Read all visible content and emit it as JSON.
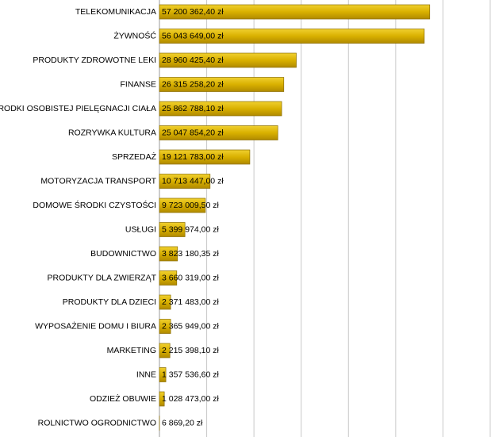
{
  "chart_data": {
    "type": "bar",
    "orientation": "horizontal",
    "color": "#d9b000",
    "grid": true,
    "categories": [
      "TELEKOMUNIKACJA",
      "ŻYWNOŚĆ",
      "PRODUKTY ZDROWOTNE LEKI",
      "FINANSE",
      "ŚRODKI OSOBISTEJ PIELĘGNACJI CIAŁA",
      "ROZRYWKA KULTURA",
      "SPRZEDAŻ",
      "MOTORYZACJA TRANSPORT",
      "DOMOWE ŚRODKI CZYSTOŚCI",
      "USŁUGI",
      "BUDOWNICTWO",
      "PRODUKTY DLA ZWIERZĄT",
      "PRODUKTY DLA DZIECI",
      "WYPOSAŻENIE DOMU I BIURA",
      "MARKETING",
      "INNE",
      "ODZIEŻ OBUWIE",
      "ROLNICTWO OGRODNICTWO"
    ],
    "values": [
      57200362.4,
      56043649.0,
      28960425.4,
      26315258.2,
      25862788.1,
      25047854.2,
      19121783.0,
      10713447.0,
      9723009.5,
      5399974.0,
      3823180.35,
      3660319.0,
      2371483.0,
      2365949.0,
      2215398.1,
      1357536.6,
      1028473.0,
      6869.2
    ],
    "value_labels": [
      "57 200 362,40 zł",
      "56 043 649,00 zł",
      "28 960 425,40 zł",
      "26 315 258,20 zł",
      "25 862 788,10 zł",
      "25 047 854,20 zł",
      "19 121 783,00 zł",
      "10 713 447,00 zł",
      "9 723 009,50 zł",
      "5 399 974,00 zł",
      "3 823 180,35 zł",
      "3 660 319,00 zł",
      "2 371 483,00 zł",
      "2 365 949,00 zł",
      "2 215 398,10 zł",
      "1 357 536,60 zł",
      "1 028 473,00 zł",
      "6 869,20 zł"
    ],
    "xlim": [
      0,
      70000000
    ],
    "xticks": [
      10000000,
      20000000,
      30000000,
      40000000,
      50000000,
      60000000,
      70000000
    ]
  }
}
